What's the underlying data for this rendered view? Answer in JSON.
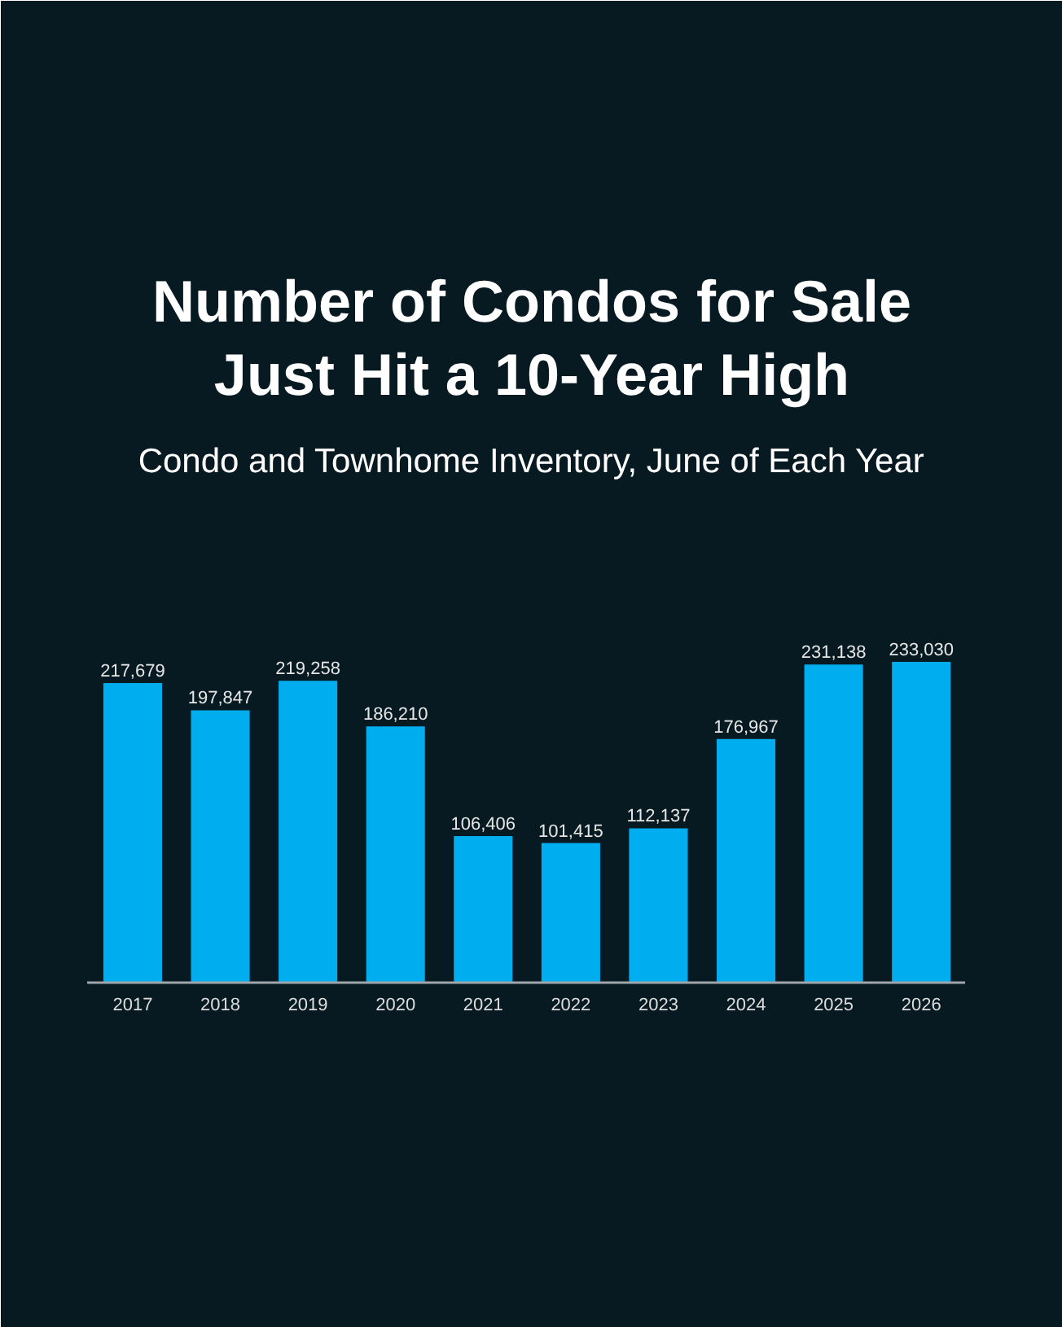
{
  "chart_data": {
    "type": "bar",
    "title": "Number of Condos for Sale Just Hit a 10-Year High",
    "subtitle": "Condo and Townhome Inventory, June of Each Year",
    "categories": [
      "2017",
      "2018",
      "2019",
      "2020",
      "2021",
      "2022",
      "2023",
      "2024",
      "2025",
      "2026"
    ],
    "values": [
      217679,
      197847,
      219258,
      186210,
      106406,
      101415,
      112137,
      176967,
      231138,
      233030
    ],
    "value_labels": [
      "217,679",
      "197,847",
      "219,258",
      "186,210",
      "106,406",
      "101,415",
      "112,137",
      "176,967",
      "231,138",
      "233,030"
    ],
    "color": "#00adee"
  }
}
